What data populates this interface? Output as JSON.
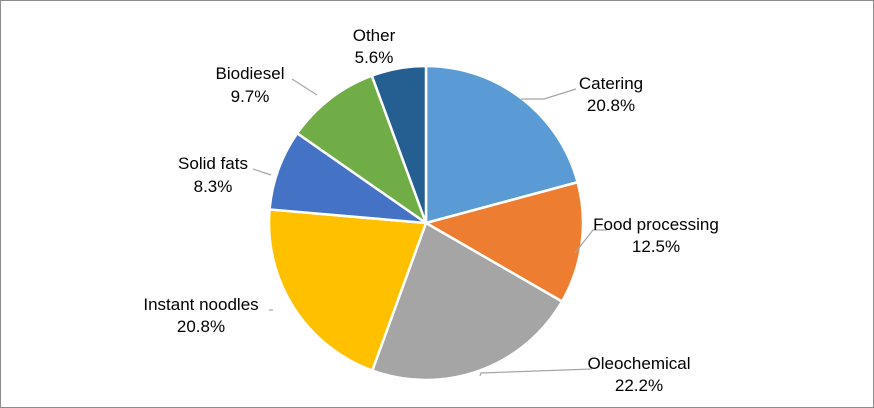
{
  "chart_data": {
    "type": "pie",
    "title": "",
    "slices": [
      {
        "label": "Catering",
        "value": 20.8,
        "value_text": "20.8%",
        "color": "#5b9bd5"
      },
      {
        "label": "Food processing",
        "value": 12.5,
        "value_text": "12.5%",
        "color": "#ed7d31"
      },
      {
        "label": "Oleochemical",
        "value": 22.2,
        "value_text": "22.2%",
        "color": "#a5a5a5"
      },
      {
        "label": "Instant noodles",
        "value": 20.8,
        "value_text": "20.8%",
        "color": "#ffc000"
      },
      {
        "label": "Solid fats",
        "value": 8.3,
        "value_text": "8.3%",
        "color": "#4472c4"
      },
      {
        "label": "Biodiesel",
        "value": 9.7,
        "value_text": "9.7%",
        "color": "#70ad47"
      },
      {
        "label": "Other",
        "value": 5.6,
        "value_text": "5.6%",
        "color": "#255e91"
      }
    ],
    "start_angle": "12 o'clock",
    "direction": "clockwise",
    "legend": "none",
    "data_labels": "outside with leader lines"
  }
}
